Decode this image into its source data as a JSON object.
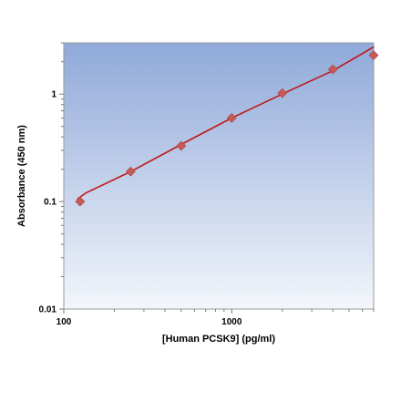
{
  "chart_data": {
    "type": "scatter",
    "xlabel": "[Human PCSK9] (pg/ml)",
    "ylabel": "Absorbance (450 nm)",
    "xscale": "log",
    "yscale": "log",
    "xlim": [
      100,
      7000
    ],
    "ylim": [
      0.01,
      3
    ],
    "x_ticks": [
      100,
      1000
    ],
    "x_tick_labels": [
      "100",
      "1000"
    ],
    "y_ticks": [
      0.01,
      0.1,
      1
    ],
    "y_tick_labels": [
      "0.01",
      "0.1",
      "1"
    ],
    "grid": false,
    "points": [
      {
        "x": 125,
        "y": 0.1
      },
      {
        "x": 250,
        "y": 0.19
      },
      {
        "x": 500,
        "y": 0.33
      },
      {
        "x": 1000,
        "y": 0.6
      },
      {
        "x": 2000,
        "y": 1.02
      },
      {
        "x": 4000,
        "y": 1.7
      },
      {
        "x": 7000,
        "y": 2.3
      }
    ],
    "fit_curve": [
      {
        "x": 120,
        "y": 0.105
      },
      {
        "x": 135,
        "y": 0.12
      },
      {
        "x": 250,
        "y": 0.19
      },
      {
        "x": 500,
        "y": 0.34
      },
      {
        "x": 1000,
        "y": 0.6
      },
      {
        "x": 2000,
        "y": 1.0
      },
      {
        "x": 4000,
        "y": 1.65
      },
      {
        "x": 7000,
        "y": 2.75
      }
    ],
    "colors": {
      "plot_bg_top": "#8fa9d9",
      "plot_bg_bottom": "#f3f6fb",
      "line": "#c0171b",
      "marker": "#c65a57"
    }
  }
}
